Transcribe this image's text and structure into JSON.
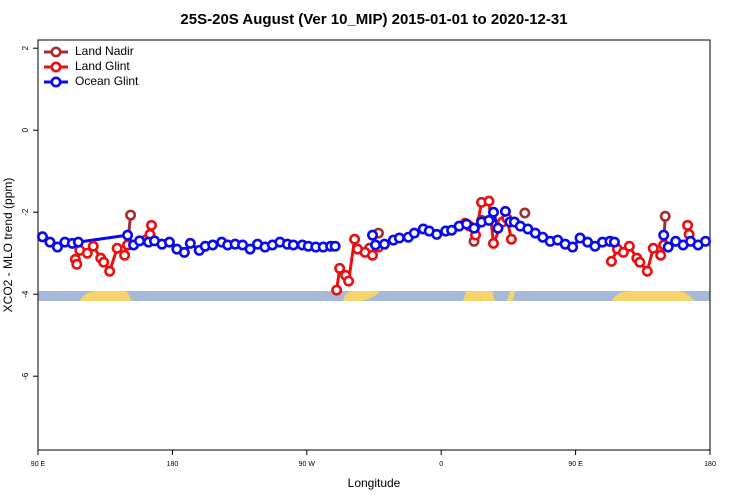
{
  "chart_data": {
    "type": "line",
    "title": "25S-20S August (Ver 10_MIP)   2015-01-01 to 2020-12-31",
    "x_label": "Longitude",
    "y_label": "XCO2 - MLO trend (ppm)",
    "xlim": [
      90,
      540
    ],
    "ylim": [
      -7.8,
      2.2
    ],
    "xticks": [
      {
        "value": 90,
        "label": "90 E"
      },
      {
        "value": 180,
        "label": "180"
      },
      {
        "value": 270,
        "label": "90 W"
      },
      {
        "value": 360,
        "label": "0"
      },
      {
        "value": 450,
        "label": "90 E"
      },
      {
        "value": 540,
        "label": "180"
      }
    ],
    "yticks": [
      2,
      0,
      -2,
      -4,
      -6
    ],
    "legend": "top-left",
    "series": [
      {
        "name": "Land Nadir",
        "color": "#a33030",
        "x": [
          150,
          152,
          200,
          312,
          318,
          350,
          382,
          387,
          400,
          416,
          460,
          509,
          510
        ],
        "values": [
          -2.8,
          -2.07,
          null,
          -2.88,
          -2.51,
          null,
          -2.71,
          -2.2,
          null,
          -2.02,
          null,
          -2.8,
          -2.1
        ]
      },
      {
        "name": "Land Glint",
        "color": "#e81010",
        "x": [
          115,
          116,
          118,
          123,
          127,
          132,
          134,
          138,
          143,
          148,
          150,
          156,
          162,
          165,
          166,
          200,
          290,
          292,
          296,
          298,
          302,
          304,
          309,
          314,
          318,
          350,
          376,
          379,
          383,
          387,
          392,
          395,
          401,
          404,
          407,
          440,
          474,
          478,
          482,
          486,
          491,
          493,
          498,
          502,
          507,
          509,
          515,
          525,
          526
        ],
        "values": [
          -3.15,
          -3.27,
          -2.93,
          -3.0,
          -2.83,
          -3.12,
          -3.22,
          -3.44,
          -2.88,
          -3.05,
          -2.8,
          null,
          -2.68,
          -2.54,
          -2.32,
          null,
          -3.9,
          -3.37,
          -3.54,
          -3.68,
          -2.66,
          -2.9,
          -2.98,
          -3.05,
          -2.85,
          null,
          -2.27,
          -2.34,
          -2.56,
          -1.76,
          -1.73,
          -2.76,
          -2.24,
          -2.15,
          -2.66,
          null,
          -3.2,
          -2.9,
          -2.98,
          -2.83,
          -3.12,
          -3.22,
          -3.44,
          -2.88,
          -3.05,
          -2.8,
          null,
          -2.32,
          -2.54
        ]
      },
      {
        "name": "Ocean Glint",
        "color": "#0a0aee",
        "x": [
          93,
          98,
          103,
          108,
          113,
          117,
          150,
          154,
          158,
          164,
          168,
          173,
          178,
          183,
          188,
          192,
          198,
          202,
          207,
          213,
          217,
          222,
          227,
          232,
          237,
          242,
          247,
          252,
          257,
          261,
          267,
          271,
          276,
          281,
          286,
          289,
          300,
          314,
          316,
          322,
          328,
          332,
          338,
          342,
          348,
          352,
          357,
          363,
          367,
          372,
          377,
          382,
          387,
          392,
          395,
          398,
          403,
          406,
          409,
          413,
          418,
          423,
          428,
          433,
          438,
          443,
          448,
          453,
          458,
          463,
          468,
          473,
          476,
          490,
          509,
          512,
          517,
          522,
          527,
          532,
          537
        ],
        "values": [
          -2.6,
          -2.73,
          -2.85,
          -2.73,
          -2.76,
          -2.73,
          -2.56,
          -2.8,
          -2.7,
          -2.73,
          -2.7,
          -2.78,
          -2.73,
          -2.9,
          -2.98,
          -2.76,
          -2.93,
          -2.83,
          -2.8,
          -2.73,
          -2.8,
          -2.78,
          -2.8,
          -2.9,
          -2.78,
          -2.85,
          -2.8,
          -2.73,
          -2.78,
          -2.8,
          -2.8,
          -2.83,
          -2.85,
          -2.85,
          -2.83,
          -2.83,
          null,
          -2.56,
          -2.8,
          -2.78,
          -2.68,
          -2.63,
          -2.61,
          -2.51,
          -2.41,
          -2.46,
          -2.54,
          -2.46,
          -2.44,
          -2.34,
          -2.29,
          -2.39,
          -2.24,
          -2.2,
          -2.0,
          -2.39,
          -1.98,
          -2.24,
          -2.24,
          -2.34,
          -2.41,
          -2.51,
          -2.61,
          -2.71,
          -2.68,
          -2.78,
          -2.85,
          -2.63,
          -2.73,
          -2.83,
          -2.73,
          -2.71,
          -2.73,
          null,
          -2.56,
          -2.85,
          -2.71,
          -2.8,
          -2.71,
          -2.8,
          -2.71
        ]
      }
    ]
  }
}
